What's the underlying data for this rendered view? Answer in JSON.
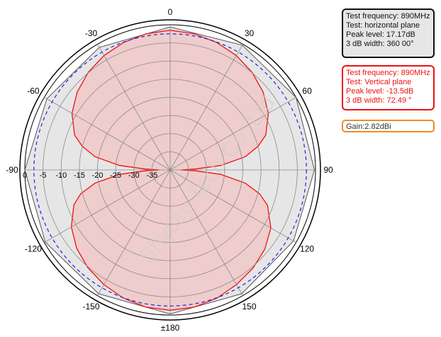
{
  "chart_data": {
    "type": "polar",
    "angle_ticks": [
      {
        "angle": 0,
        "label": "0"
      },
      {
        "angle": 30,
        "label": "30"
      },
      {
        "angle": 60,
        "label": "60"
      },
      {
        "angle": 90,
        "label": "90"
      },
      {
        "angle": 120,
        "label": "120"
      },
      {
        "angle": 150,
        "label": "150"
      },
      {
        "angle": 180,
        "label": "±180"
      },
      {
        "angle": -150,
        "label": "-150"
      },
      {
        "angle": -120,
        "label": "-120"
      },
      {
        "angle": -90,
        "label": "-90"
      },
      {
        "angle": -60,
        "label": "-60"
      },
      {
        "angle": -30,
        "label": "-30"
      }
    ],
    "radial_ticks": [
      {
        "value": 0,
        "label": "0"
      },
      {
        "value": -5,
        "label": "-5"
      },
      {
        "value": -10,
        "label": "-10"
      },
      {
        "value": -15,
        "label": "-15"
      },
      {
        "value": -20,
        "label": "-20"
      },
      {
        "value": -25,
        "label": "-25"
      },
      {
        "value": -30,
        "label": "-30"
      },
      {
        "value": -35,
        "label": "-35"
      }
    ],
    "rlim": [
      -40,
      0
    ],
    "grid": true,
    "reference_circle": {
      "value": -2.5,
      "style": "dashed",
      "color": "#2222dd"
    },
    "series": [
      {
        "color": "#555555",
        "fill": "#e6e6e6",
        "points": [
          [
            0,
            -0.6
          ],
          [
            30,
            -0.3
          ],
          [
            60,
            0
          ],
          [
            90,
            -0.3
          ],
          [
            120,
            -0.8
          ],
          [
            150,
            -0.6
          ],
          [
            180,
            -0.3
          ],
          [
            -150,
            -0.6
          ],
          [
            -120,
            -0.3
          ],
          [
            -90,
            0
          ],
          [
            -60,
            -0.8
          ],
          [
            -30,
            -1.0
          ]
        ]
      },
      {
        "color": "#ee1111",
        "fill": "#f0c8c8",
        "points": [
          [
            0,
            -1.5
          ],
          [
            10,
            -1.9
          ],
          [
            20,
            -2.6
          ],
          [
            30,
            -3.6
          ],
          [
            40,
            -4.9
          ],
          [
            50,
            -6.6
          ],
          [
            60,
            -8.8
          ],
          [
            70,
            -12.0
          ],
          [
            75,
            -15.0
          ],
          [
            80,
            -19.0
          ],
          [
            85,
            -26.0
          ],
          [
            88,
            -33.0
          ],
          [
            90,
            -37.0
          ],
          [
            92,
            -33.0
          ],
          [
            95,
            -26.0
          ],
          [
            100,
            -19.0
          ],
          [
            105,
            -14.5
          ],
          [
            110,
            -11.5
          ],
          [
            120,
            -8.0
          ],
          [
            130,
            -6.0
          ],
          [
            140,
            -4.6
          ],
          [
            150,
            -3.5
          ],
          [
            160,
            -2.4
          ],
          [
            170,
            -1.6
          ],
          [
            180,
            -1.3
          ],
          [
            -170,
            -1.6
          ],
          [
            -160,
            -2.4
          ],
          [
            -150,
            -3.5
          ],
          [
            -140,
            -4.8
          ],
          [
            -130,
            -6.4
          ],
          [
            -120,
            -8.6
          ],
          [
            -110,
            -11.8
          ],
          [
            -105,
            -14.5
          ],
          [
            -100,
            -19.0
          ],
          [
            -95,
            -26.0
          ],
          [
            -92,
            -33.0
          ],
          [
            -90,
            -37.0
          ],
          [
            -88,
            -33.0
          ],
          [
            -85,
            -26.0
          ],
          [
            -80,
            -19.0
          ],
          [
            -75,
            -15.0
          ],
          [
            -70,
            -12.0
          ],
          [
            -60,
            -8.8
          ],
          [
            -50,
            -6.6
          ],
          [
            -40,
            -4.9
          ],
          [
            -30,
            -3.6
          ],
          [
            -20,
            -2.6
          ],
          [
            -10,
            -1.9
          ]
        ]
      }
    ]
  },
  "legend": {
    "horizontal": {
      "line1": "Test frequency: 890MHz",
      "line2": "Test: horizontal plane",
      "line3": "Peak level: 17.17dB",
      "line4": "3 dB width: 360 00°"
    },
    "vertical": {
      "line1": "Test frequency: 890MHz",
      "line2": "Test: Vertical plane",
      "line3": "Peak level: -13.5dB",
      "line4": "3 dB width: 72.49 °"
    },
    "gain": "Gain:2.82dBi"
  },
  "watermark": "Shysky Tech Co.,Ltd"
}
